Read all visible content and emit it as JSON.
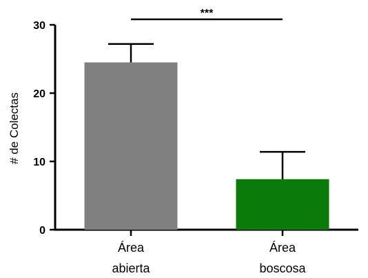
{
  "chart_data": {
    "type": "bar",
    "categories": [
      [
        "Área",
        "abierta"
      ],
      [
        "Área",
        "boscosa"
      ]
    ],
    "values": [
      24.5,
      7.4
    ],
    "error_upper": [
      27.2,
      11.4
    ],
    "colors": [
      "#808080",
      "#0a7a0a"
    ],
    "ylabel": "# de Colectas",
    "ylim": [
      0,
      30
    ],
    "yticks": [
      0,
      10,
      20,
      30
    ],
    "significance": {
      "label": "***",
      "between": [
        0,
        1
      ]
    },
    "grid": false,
    "legend": "none"
  }
}
